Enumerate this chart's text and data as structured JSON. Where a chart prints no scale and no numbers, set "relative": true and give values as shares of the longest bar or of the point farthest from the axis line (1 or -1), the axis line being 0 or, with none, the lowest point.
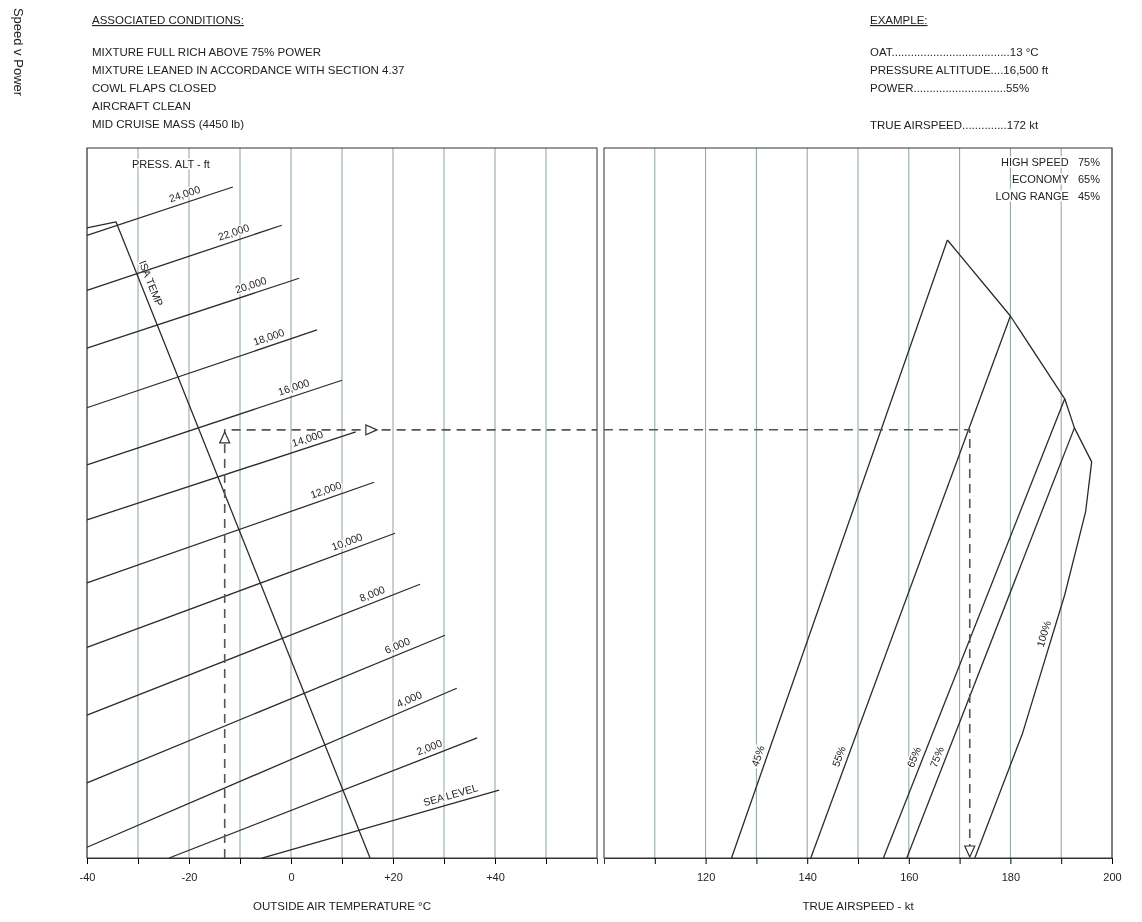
{
  "chart_data": [
    {
      "type": "line",
      "title": "Speed v Power",
      "xlabel": "OUTSIDE AIR TEMPERATURE °C",
      "relative": true,
      "grid": "x",
      "xlim": [
        -40,
        60
      ],
      "xticks": [
        -40,
        {
          "value": -30,
          "label": null
        },
        -20,
        {
          "value": -10,
          "label": null
        },
        0,
        {
          "value": 10,
          "label": null
        },
        {
          "value": 20,
          "label": "+20"
        },
        {
          "value": 30,
          "label": null
        },
        {
          "value": 40,
          "label": "+40"
        },
        {
          "value": 50,
          "label": null
        }
      ],
      "annotations": [
        "ASSOCIATED CONDITIONS:",
        "MIXTURE FULL RICH ABOVE 75% POWER",
        "MIXTURE LEANED IN ACCORDANCE WITH SECTION 4.37",
        "COWL FLAPS CLOSED",
        "AIRCRAFT CLEAN",
        "MID CRUISE MASS  (4450 lb)",
        "PRESS. ALT - ft"
      ],
      "series": [
        {
          "name": "ISA TEMP",
          "color": "#2b2b2b",
          "x": [
            -40,
            -34.3,
            15.5
          ],
          "values": [
            0.939,
            0.948,
            0
          ]
        },
        {
          "name": "SEA LEVEL",
          "color": "#2b2b2b",
          "x": [
            -5.7,
            40.8
          ],
          "values": [
            0,
            0.101
          ]
        },
        {
          "name": "2,000",
          "color": "#2b2b2b",
          "x": [
            -23.9,
            36.5
          ],
          "values": [
            0,
            0.179
          ]
        },
        {
          "name": "4,000",
          "color": "#2b2b2b",
          "x": [
            -40,
            32.5
          ],
          "values": [
            0.016,
            0.253
          ]
        },
        {
          "name": "6,000",
          "color": "#2b2b2b",
          "x": [
            -40,
            30.2
          ],
          "values": [
            0.112,
            0.332
          ]
        },
        {
          "name": "8,000",
          "color": "#2b2b2b",
          "x": [
            -40,
            25.3
          ],
          "values": [
            0.213,
            0.408
          ]
        },
        {
          "name": "10,000",
          "color": "#2b2b2b",
          "x": [
            -40,
            20.4
          ],
          "values": [
            0.314,
            0.484
          ]
        },
        {
          "name": "12,000",
          "color": "#2b2b2b",
          "x": [
            -40,
            16.3
          ],
          "values": [
            0.41,
            0.56
          ]
        },
        {
          "name": "14,000",
          "color": "#2b2b2b",
          "x": [
            -40,
            12.7
          ],
          "values": [
            0.504,
            0.635
          ]
        },
        {
          "name": "16,000",
          "color": "#2b2b2b",
          "x": [
            -40,
            10
          ],
          "values": [
            0.586,
            0.712
          ]
        },
        {
          "name": "18,000",
          "color": "#2b2b2b",
          "x": [
            -40,
            5.1
          ],
          "values": [
            0.671,
            0.787
          ]
        },
        {
          "name": "20,000",
          "color": "#2b2b2b",
          "x": [
            -40,
            1.6
          ],
          "values": [
            0.76,
            0.864
          ]
        },
        {
          "name": "22,000",
          "color": "#2b2b2b",
          "x": [
            -40,
            -1.8
          ],
          "values": [
            0.846,
            0.943
          ]
        },
        {
          "name": "24,000",
          "color": "#2b2b2b",
          "x": [
            -40,
            -11.4
          ],
          "values": [
            0.928,
            1
          ]
        },
        {
          "color": "#555555",
          "line_style": "dashed",
          "x": [
            -13,
            -13,
            60
          ],
          "values": [
            0,
            0.638,
            0.638
          ]
        }
      ]
    },
    {
      "type": "line",
      "xlabel": "TRUE AIRSPEED  -  kt",
      "relative": true,
      "grid": "x",
      "xlim": [
        100,
        200
      ],
      "xticks": [
        {
          "value": 110,
          "label": null
        },
        120,
        {
          "value": 130,
          "label": null
        },
        140,
        {
          "value": 150,
          "label": null
        },
        160,
        {
          "value": 170,
          "label": null
        },
        180,
        {
          "value": 190,
          "label": null
        },
        200
      ],
      "annotations": [
        "EXAMPLE:",
        "OAT.....................................13 °C",
        "PRESSURE ALTITUDE....16,500 ft",
        "POWER.............................55%",
        "TRUE AIRSPEED..............172 kt",
        "HIGH SPEED 75%",
        "ECONOMY 65%",
        "LONG RANGE 45%"
      ],
      "series": [
        {
          "name": "45%",
          "color": "#2b2b2b",
          "x": [
            125.1,
            167.6
          ],
          "values": [
            0,
            1
          ]
        },
        {
          "name": "55%",
          "color": "#2b2b2b",
          "x": [
            140.7,
            180
          ],
          "values": [
            0,
            0.877
          ]
        },
        {
          "name": "65%",
          "color": "#2b2b2b",
          "x": [
            155,
            190.7
          ],
          "values": [
            0,
            0.743
          ]
        },
        {
          "name": "75%",
          "color": "#2b2b2b",
          "x": [
            159.6,
            192.6
          ],
          "values": [
            0,
            0.696
          ]
        },
        {
          "name": "100%",
          "color": "#2b2b2b",
          "x": [
            173,
            182.4,
            190.7,
            194.8,
            196,
            192.6,
            190.7,
            180,
            167.6
          ],
          "values": [
            0,
            0.202,
            0.426,
            0.56,
            0.641,
            0.696,
            0.743,
            0.877,
            1
          ]
        },
        {
          "color": "#555555",
          "line_style": "dashed",
          "x": [
            100,
            172,
            172
          ],
          "values": [
            0.693,
            0.693,
            0
          ]
        }
      ]
    }
  ]
}
